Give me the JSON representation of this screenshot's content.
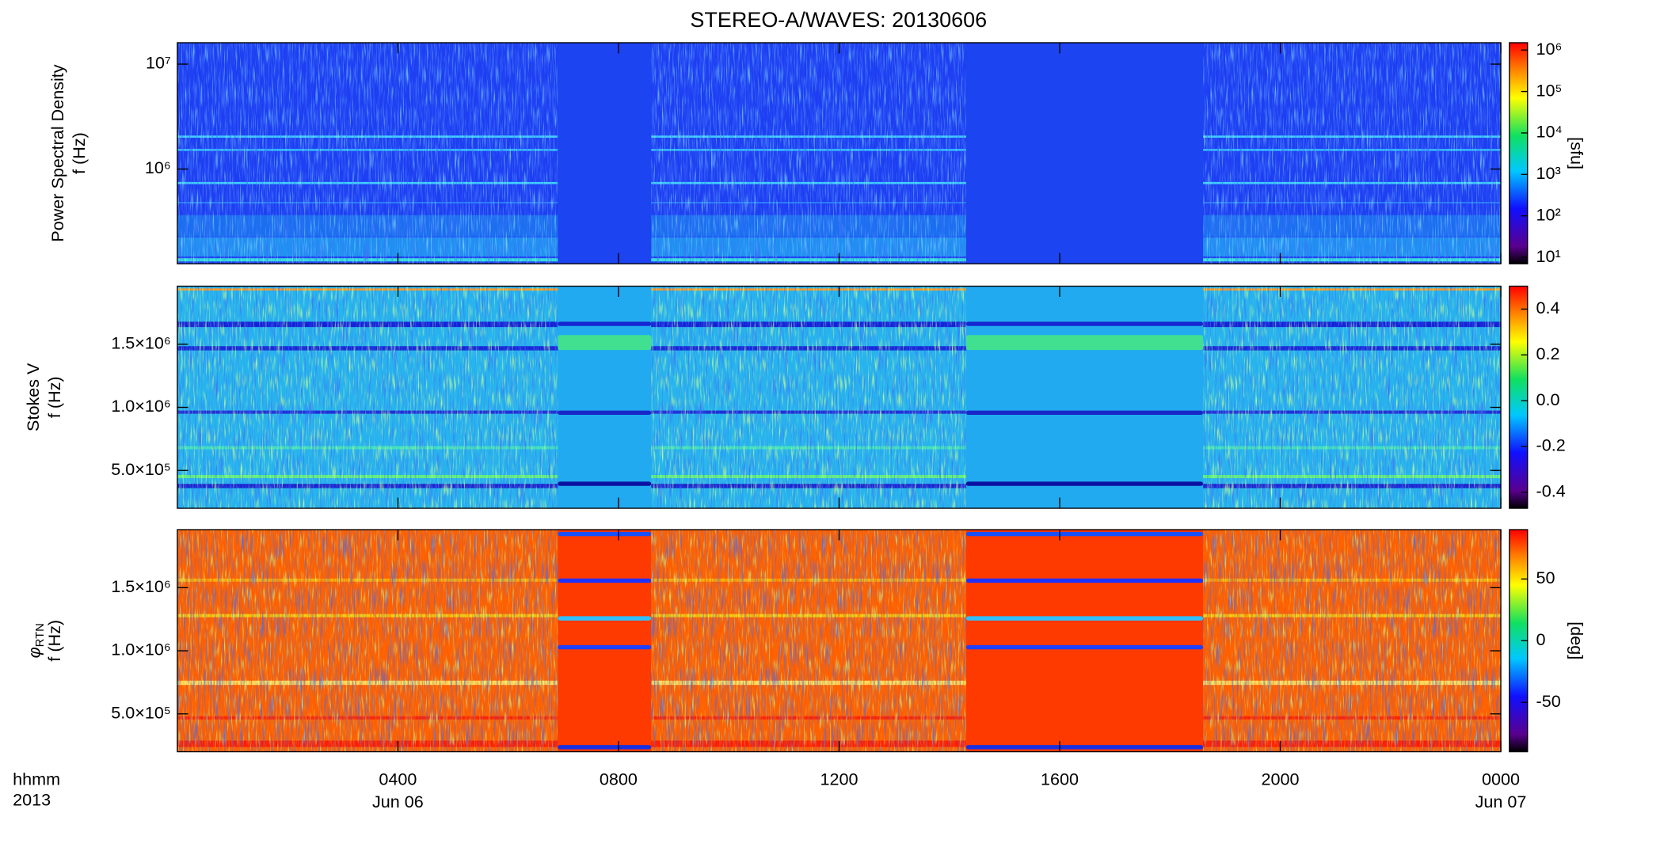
{
  "chart_data": [
    {
      "type": "spectrogram",
      "title": "STEREO-A/WAVES: 20130606",
      "ylabel": [
        "Power Spectral Density",
        "f (Hz)"
      ],
      "yscale": "log",
      "ylim": [
        125000,
        16000000
      ],
      "yticks": [
        {
          "value": 1000000,
          "label": "10⁶"
        },
        {
          "value": 10000000,
          "label": "10⁷"
        }
      ],
      "colorbar": {
        "scale": "log",
        "clim": [
          7,
          1500000
        ],
        "label": "[sfu]",
        "ticks": [
          {
            "value": 10,
            "label": "10¹"
          },
          {
            "value": 100,
            "label": "10²"
          },
          {
            "value": 1000,
            "label": "10³"
          },
          {
            "value": 10000,
            "label": "10⁴"
          },
          {
            "value": 100000,
            "label": "10⁵"
          },
          {
            "value": 1000000,
            "label": "10⁶"
          }
        ]
      }
    },
    {
      "type": "spectrogram",
      "ylabel": [
        "Stokes V",
        "f (Hz)"
      ],
      "yscale": "linear",
      "ylim": [
        200000,
        1960000
      ],
      "yticks": [
        {
          "value": 500000,
          "label": "5.0×10⁵"
        },
        {
          "value": 1000000,
          "label": "1.0×10⁶"
        },
        {
          "value": 1500000,
          "label": "1.5×10⁶"
        }
      ],
      "colorbar": {
        "scale": "linear",
        "clim": [
          -0.47,
          0.5
        ],
        "ticks": [
          -0.4,
          -0.2,
          {
            "value": 0,
            "label": "0.0"
          },
          0.2,
          0.4
        ]
      }
    },
    {
      "type": "spectrogram",
      "ylabel_symbol": "φ",
      "ylabel_subscript": "RTN",
      "ylabel": [
        "f (Hz)"
      ],
      "yscale": "linear",
      "ylim": [
        200000,
        1960000
      ],
      "yticks": [
        {
          "value": 500000,
          "label": "5.0×10⁵"
        },
        {
          "value": 1000000,
          "label": "1.0×10⁶"
        },
        {
          "value": 1500000,
          "label": "1.5×10⁶"
        }
      ],
      "colorbar": {
        "scale": "linear",
        "clim": [
          -90,
          90
        ],
        "label": "[deg]",
        "ticks": [
          -50,
          0,
          50
        ]
      },
      "xlabel": [
        "hhmm",
        "2013"
      ],
      "xlim": [
        0,
        24
      ],
      "xticks": [
        {
          "value": 4,
          "label": "0400"
        },
        {
          "value": 8,
          "label": "0800"
        },
        {
          "value": 12,
          "label": "1200"
        },
        {
          "value": 16,
          "label": "1600"
        },
        {
          "value": 20,
          "label": "2000"
        },
        {
          "value": 24,
          "label": "0000"
        }
      ],
      "x_date_labels": [
        {
          "value": 4,
          "label": "Jun 06"
        },
        {
          "value": 24,
          "label": "Jun 07"
        }
      ]
    }
  ]
}
